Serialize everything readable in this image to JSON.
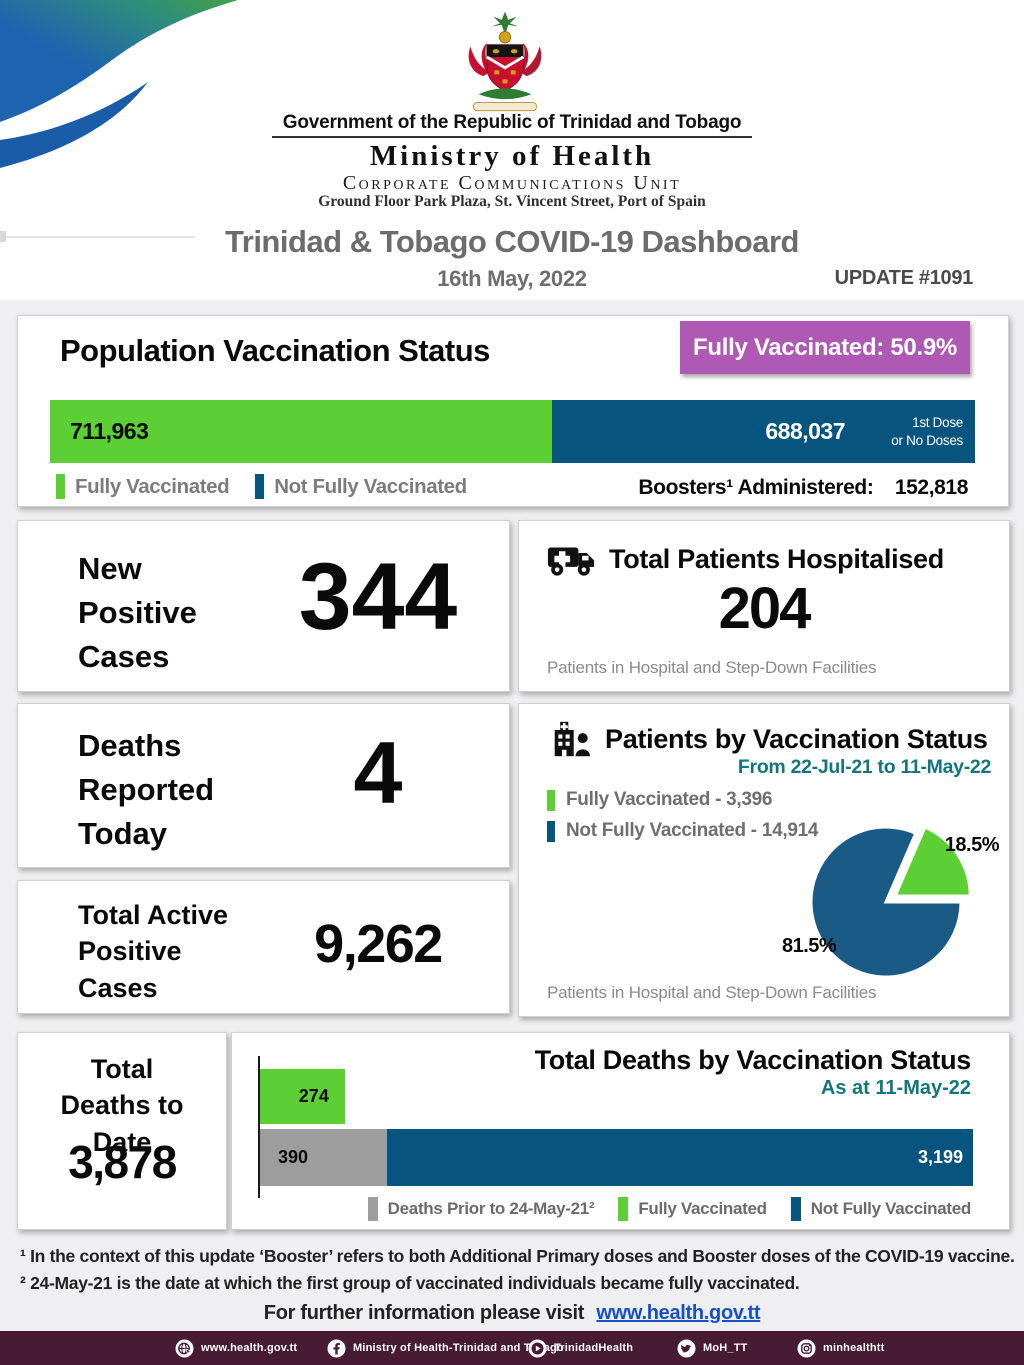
{
  "colors": {
    "green": "#5CCF35",
    "blue": "#07547F",
    "pie_blue": "#1A5B86",
    "purple": "#AE5AB5",
    "teal": "#13767E",
    "gray_bar": "#9D9D9D",
    "text_gray": "#7C7C7C",
    "title_gray": "#6C6C6C",
    "footer_bg": "#461B33",
    "section_bg": "#EFEFF1",
    "link": "#1550C8"
  },
  "masthead": {
    "gov": "Government of the Republic of Trinidad and Tobago",
    "ministry": "Ministry of Health",
    "unit": "Corporate Communications Unit",
    "address": "Ground Floor Park Plaza, St. Vincent Street, Port of Spain"
  },
  "titlebar": {
    "title": "Trinidad & Tobago COVID-19 Dashboard",
    "date": "16th May, 2022",
    "update": "UPDATE #1091"
  },
  "population": {
    "title": "Population Vaccination Status",
    "badge": "Fully Vaccinated: 50.9%",
    "fully_value": "711,963",
    "not_fully_value": "688,037",
    "dose1": "1st Dose",
    "dose2": "or No Doses",
    "legend_fully": "Fully Vaccinated",
    "legend_not": "Not Fully Vaccinated",
    "boosters_label": "Boosters¹ Administered:",
    "boosters_value": "152,818"
  },
  "new_cases": {
    "label": "New Positive Cases",
    "value": "344"
  },
  "hospitalised": {
    "title": "Total Patients Hospitalised",
    "value": "204",
    "note": "Patients in Hospital and Step-Down Facilities"
  },
  "deaths_today": {
    "label": "Deaths Reported Today",
    "value": "4"
  },
  "patients_status": {
    "title": "Patients by Vaccination Status",
    "subtitle": "From 22-Jul-21 to 11-May-22",
    "legend_fully": "Fully Vaccinated - 3,396",
    "legend_not": "Not Fully Vaccinated - 14,914",
    "pct_fully": "18.5%",
    "pct_not": "81.5%",
    "note": "Patients in Hospital and Step-Down Facilities"
  },
  "active_cases": {
    "label": "Total Active Positive Cases",
    "value": "9,262"
  },
  "total_deaths": {
    "label": "Total Deaths to Date",
    "value": "3,878"
  },
  "deaths_chart": {
    "title": "Total Deaths by Vaccination Status",
    "subtitle": "As at 11-May-22",
    "bar_fully": "274",
    "bar_prior": "390",
    "bar_not": "3,199",
    "legend_prior": "Deaths Prior to 24-May-21²",
    "legend_fully": "Fully Vaccinated",
    "legend_not": "Not Fully Vaccinated"
  },
  "footnotes": {
    "line1": "¹ In the context of this update ‘Booster’ refers to both Additional Primary doses and Booster doses of the COVID-19 vaccine.",
    "line2": "² 24-May-21 is the date at which the first group of vaccinated individuals became fully vaccinated."
  },
  "more_info": {
    "prefix": "For further information please visit",
    "link": "www.health.gov.tt"
  },
  "footer": {
    "items": [
      {
        "icon": "globe-icon",
        "label": "www.health.gov.tt"
      },
      {
        "icon": "facebook-icon",
        "label": "Ministry of Health-Trinidad and Tobago"
      },
      {
        "icon": "youtube-icon",
        "label": "TrinidadHealth"
      },
      {
        "icon": "twitter-icon",
        "label": "MoH_TT"
      },
      {
        "icon": "instagram-icon",
        "label": "minhealthtt"
      }
    ]
  },
  "chart_data": [
    {
      "type": "bar",
      "title": "Population Vaccination Status",
      "categories": [
        "Population"
      ],
      "series": [
        {
          "name": "Fully Vaccinated",
          "values": [
            711963
          ]
        },
        {
          "name": "Not Fully Vaccinated (1st Dose or No Doses)",
          "values": [
            688037
          ]
        }
      ],
      "annotations": [
        "Fully Vaccinated: 50.9%",
        "Boosters Administered: 152,818"
      ],
      "layout": {
        "orientation": "horizontal_stacked",
        "fully_width_pct": 54.3,
        "legend_position": "below"
      }
    },
    {
      "type": "pie",
      "title": "Patients by Vaccination Status",
      "subtitle": "From 22-Jul-21 to 11-May-22",
      "labels": [
        "Fully Vaccinated",
        "Not Fully Vaccinated"
      ],
      "values": [
        3396,
        14914
      ],
      "percents": [
        18.5,
        81.5
      ],
      "colors": [
        "#5CCF35",
        "#1A5B86"
      ],
      "explode": [
        true,
        false
      ],
      "note": "Patients in Hospital and Step-Down Facilities",
      "legend_position": "top-left"
    },
    {
      "type": "bar",
      "title": "Total Deaths by Vaccination Status",
      "subtitle": "As at 11-May-22",
      "categories": [
        "Fully Vaccinated",
        "Deaths Prior to 24-May-21",
        "Not Fully Vaccinated"
      ],
      "values": [
        274,
        390,
        3199
      ],
      "colors": [
        "#5CCF35",
        "#9D9D9D",
        "#07547F"
      ],
      "layout": {
        "orientation": "horizontal",
        "rows": [
          "Fully Vaccinated",
          "Deaths Prior stacked with Not Fully Vaccinated"
        ],
        "widths_pct": [
          11.9,
          17.8,
          82.2
        ]
      }
    }
  ]
}
